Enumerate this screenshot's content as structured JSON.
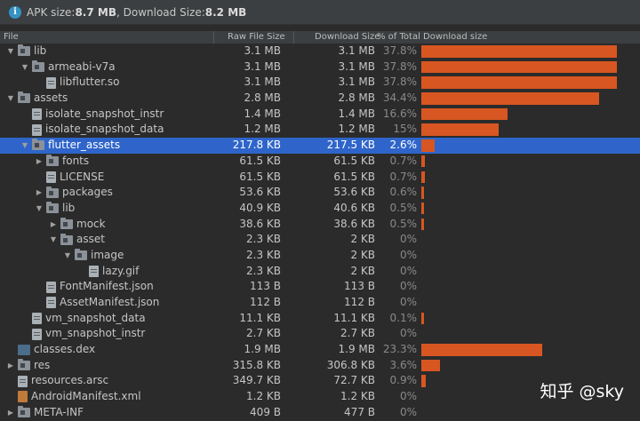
{
  "summary": {
    "apk_label": "APK size: ",
    "apk_value": "8.7 MB",
    "download_label": ", Download Size: ",
    "download_value": "8.2 MB"
  },
  "columns": {
    "file": "File",
    "raw": "Raw File Size",
    "download": "Download Size",
    "percent": "% of Total Download size"
  },
  "rows": [
    {
      "name": "lib",
      "icon": "folder-icon",
      "indent": 0,
      "arrow": "expanded",
      "raw": "3.1 MB",
      "download": "3.1 MB",
      "percent": "37.8%",
      "fraction": 0.378
    },
    {
      "name": "armeabi-v7a",
      "icon": "folder-icon",
      "indent": 1,
      "arrow": "expanded",
      "raw": "3.1 MB",
      "download": "3.1 MB",
      "percent": "37.8%",
      "fraction": 0.378
    },
    {
      "name": "libflutter.so",
      "icon": "file-icon",
      "indent": 2,
      "arrow": "none",
      "raw": "3.1 MB",
      "download": "3.1 MB",
      "percent": "37.8%",
      "fraction": 0.378
    },
    {
      "name": "assets",
      "icon": "folder-icon",
      "indent": 0,
      "arrow": "expanded",
      "raw": "2.8 MB",
      "download": "2.8 MB",
      "percent": "34.4%",
      "fraction": 0.344
    },
    {
      "name": "isolate_snapshot_instr",
      "icon": "file-icon",
      "indent": 1,
      "arrow": "none",
      "raw": "1.4 MB",
      "download": "1.4 MB",
      "percent": "16.6%",
      "fraction": 0.166
    },
    {
      "name": "isolate_snapshot_data",
      "icon": "file-icon",
      "indent": 1,
      "arrow": "none",
      "raw": "1.2 MB",
      "download": "1.2 MB",
      "percent": "15%",
      "fraction": 0.15
    },
    {
      "name": "flutter_assets",
      "icon": "folder-icon",
      "indent": 1,
      "arrow": "expanded",
      "raw": "217.8 KB",
      "download": "217.5 KB",
      "percent": "2.6%",
      "fraction": 0.026,
      "selected": true
    },
    {
      "name": "fonts",
      "icon": "folder-icon",
      "indent": 2,
      "arrow": "collapsed",
      "raw": "61.5 KB",
      "download": "61.5 KB",
      "percent": "0.7%",
      "fraction": 0.007
    },
    {
      "name": "LICENSE",
      "icon": "file-icon",
      "indent": 2,
      "arrow": "none",
      "raw": "61.5 KB",
      "download": "61.5 KB",
      "percent": "0.7%",
      "fraction": 0.007
    },
    {
      "name": "packages",
      "icon": "folder-icon",
      "indent": 2,
      "arrow": "collapsed",
      "raw": "53.6 KB",
      "download": "53.6 KB",
      "percent": "0.6%",
      "fraction": 0.006
    },
    {
      "name": "lib",
      "icon": "folder-icon",
      "indent": 2,
      "arrow": "expanded",
      "raw": "40.9 KB",
      "download": "40.6 KB",
      "percent": "0.5%",
      "fraction": 0.005
    },
    {
      "name": "mock",
      "icon": "folder-icon",
      "indent": 3,
      "arrow": "collapsed",
      "raw": "38.6 KB",
      "download": "38.6 KB",
      "percent": "0.5%",
      "fraction": 0.005
    },
    {
      "name": "asset",
      "icon": "folder-icon",
      "indent": 3,
      "arrow": "expanded",
      "raw": "2.3 KB",
      "download": "2 KB",
      "percent": "0%",
      "fraction": 0
    },
    {
      "name": "image",
      "icon": "folder-icon",
      "indent": 4,
      "arrow": "expanded",
      "raw": "2.3 KB",
      "download": "2 KB",
      "percent": "0%",
      "fraction": 0
    },
    {
      "name": "lazy.gif",
      "icon": "file-icon",
      "indent": 5,
      "arrow": "none",
      "raw": "2.3 KB",
      "download": "2 KB",
      "percent": "0%",
      "fraction": 0
    },
    {
      "name": "FontManifest.json",
      "icon": "file-icon",
      "indent": 2,
      "arrow": "none",
      "raw": "113 B",
      "download": "113 B",
      "percent": "0%",
      "fraction": 0
    },
    {
      "name": "AssetManifest.json",
      "icon": "file-icon",
      "indent": 2,
      "arrow": "none",
      "raw": "112 B",
      "download": "112 B",
      "percent": "0%",
      "fraction": 0
    },
    {
      "name": "vm_snapshot_data",
      "icon": "file-icon",
      "indent": 1,
      "arrow": "none",
      "raw": "11.1 KB",
      "download": "11.1 KB",
      "percent": "0.1%",
      "fraction": 0.001
    },
    {
      "name": "vm_snapshot_instr",
      "icon": "file-icon",
      "indent": 1,
      "arrow": "none",
      "raw": "2.7 KB",
      "download": "2.7 KB",
      "percent": "0%",
      "fraction": 0
    },
    {
      "name": "classes.dex",
      "icon": "dex-icon",
      "indent": 0,
      "arrow": "none",
      "raw": "1.9 MB",
      "download": "1.9 MB",
      "percent": "23.3%",
      "fraction": 0.233
    },
    {
      "name": "res",
      "icon": "folder-icon",
      "indent": 0,
      "arrow": "collapsed",
      "raw": "315.8 KB",
      "download": "306.8 KB",
      "percent": "3.6%",
      "fraction": 0.036
    },
    {
      "name": "resources.arsc",
      "icon": "file-icon",
      "indent": 0,
      "arrow": "none",
      "raw": "349.7 KB",
      "download": "72.7 KB",
      "percent": "0.9%",
      "fraction": 0.009
    },
    {
      "name": "AndroidManifest.xml",
      "icon": "xml-icon",
      "indent": 0,
      "arrow": "none",
      "raw": "1.2 KB",
      "download": "1.2 KB",
      "percent": "0%",
      "fraction": 0
    },
    {
      "name": "META-INF",
      "icon": "folder-icon",
      "indent": 0,
      "arrow": "collapsed",
      "raw": "409 B",
      "download": "477 B",
      "percent": "0%",
      "fraction": 0
    }
  ],
  "watermark": "知乎 @sky",
  "colors": {
    "bar": "#d85621",
    "selected": "#2f65ca"
  }
}
